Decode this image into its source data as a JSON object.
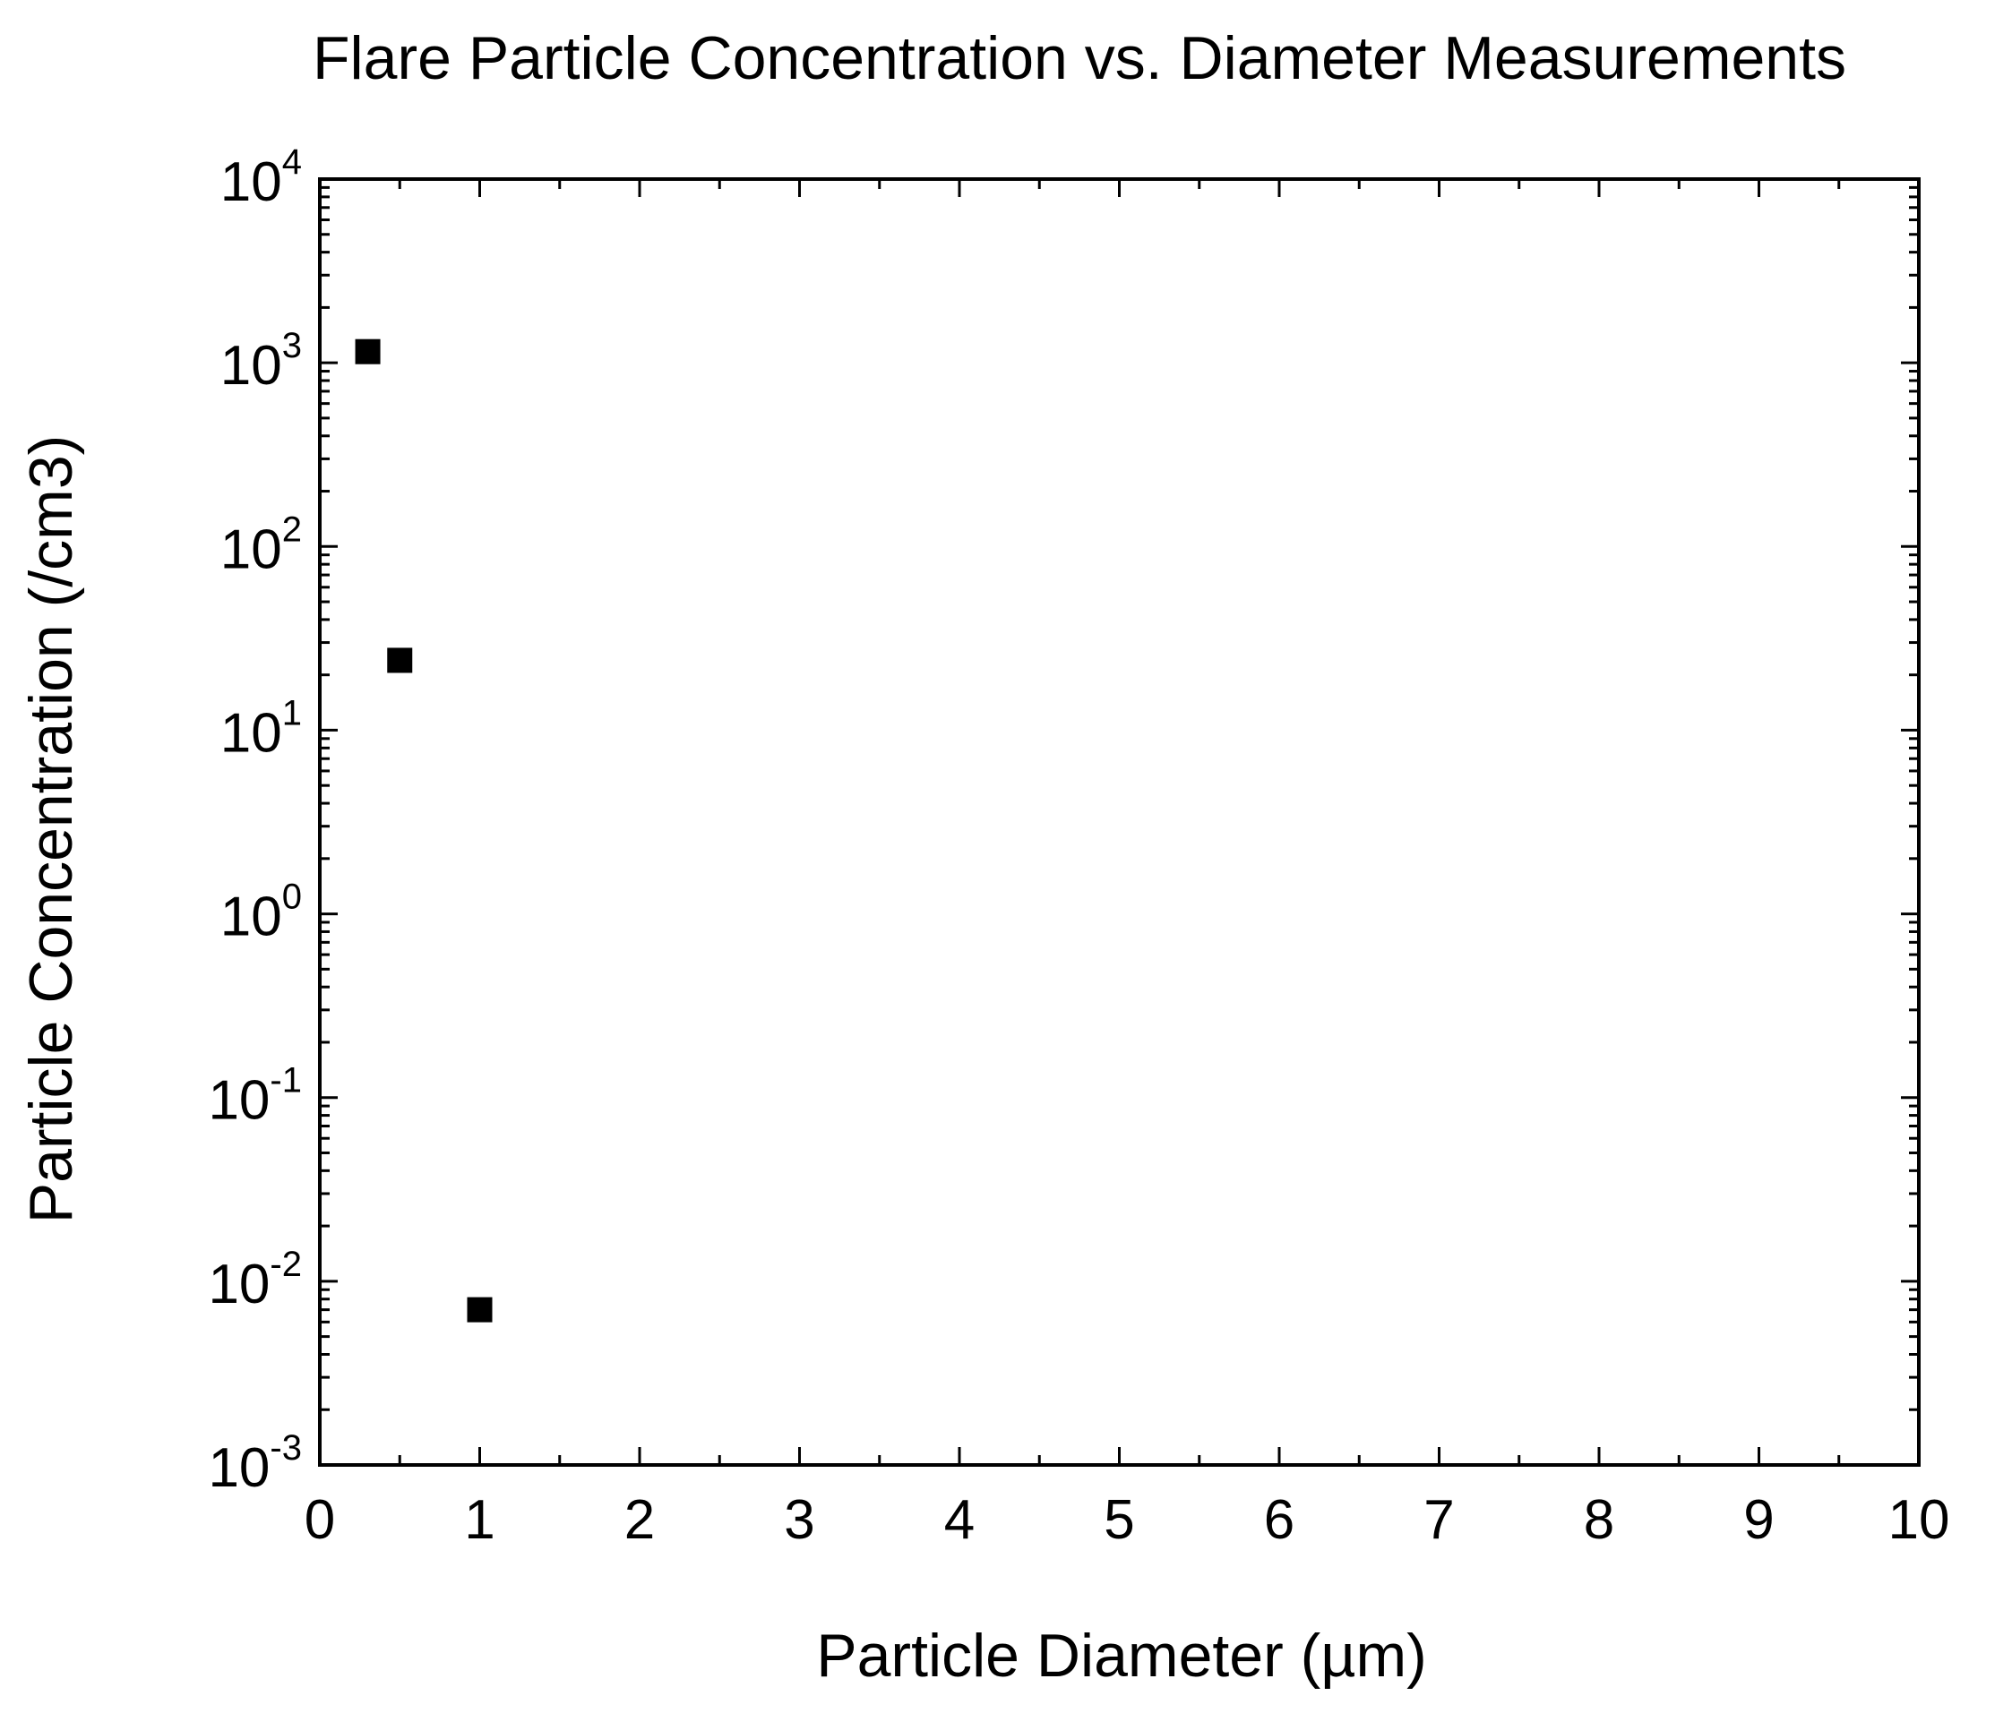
{
  "chart_data": {
    "type": "scatter",
    "title": "Flare Particle Concentration vs. Diameter Measurements",
    "xlabel": "Particle Diameter (µm)",
    "ylabel": "Particle Concentration (/cm3)",
    "xlim": [
      0,
      10
    ],
    "ylim": [
      0.001,
      10000
    ],
    "yscale": "log",
    "grid": false,
    "x_ticks": [
      "0",
      "1",
      "2",
      "3",
      "4",
      "5",
      "6",
      "7",
      "8",
      "9",
      "10"
    ],
    "y_ticks": [
      {
        "base": "10",
        "exp": "-3"
      },
      {
        "base": "10",
        "exp": "-2"
      },
      {
        "base": "10",
        "exp": "-1"
      },
      {
        "base": "10",
        "exp": "0"
      },
      {
        "base": "10",
        "exp": "1"
      },
      {
        "base": "10",
        "exp": "2"
      },
      {
        "base": "10",
        "exp": "3"
      },
      {
        "base": "10",
        "exp": "4"
      }
    ],
    "marker": "square",
    "marker_color": "#000000",
    "points": [
      {
        "x": 0.3,
        "y": 1150
      },
      {
        "x": 0.5,
        "y": 24
      },
      {
        "x": 1.0,
        "y": 0.007
      }
    ]
  }
}
